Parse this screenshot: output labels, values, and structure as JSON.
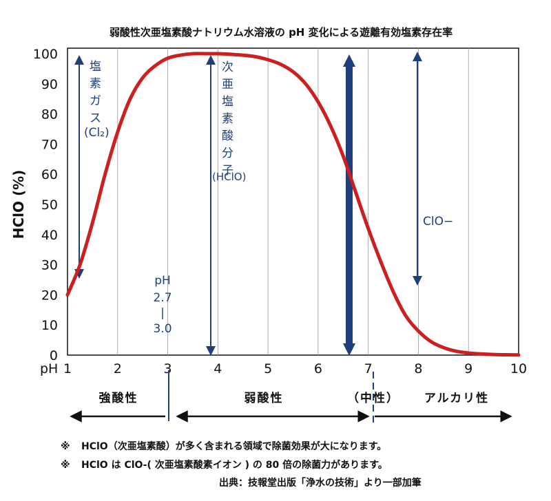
{
  "chart_data": {
    "type": "line",
    "title": "弱酸性次亜塩素酸ナトリウム水溶液の pH 変化による遊離有効塩素存在率",
    "ylabel": "HClO (%)",
    "xlabel": "pH",
    "xlim": [
      1,
      10
    ],
    "ylim": [
      0,
      100
    ],
    "x_ticks": [
      "1",
      "2",
      "3",
      "4",
      "5",
      "6",
      "7",
      "8",
      "9",
      "10"
    ],
    "y_ticks": [
      "0",
      "10",
      "20",
      "30",
      "40",
      "50",
      "60",
      "70",
      "80",
      "90",
      "100"
    ],
    "grid": "vertical",
    "series": [
      {
        "color": "#cc1f1f",
        "x": [
          1.0,
          1.25,
          1.5,
          1.75,
          2.0,
          2.25,
          2.5,
          2.75,
          3.0,
          3.25,
          3.5,
          3.75,
          4.0,
          4.25,
          4.5,
          4.75,
          5.0,
          5.25,
          5.5,
          5.75,
          6.0,
          6.25,
          6.5,
          6.75,
          7.0,
          7.25,
          7.5,
          7.75,
          8.0,
          8.25,
          8.5,
          8.75,
          9.0,
          9.25,
          9.5,
          9.75,
          10.0
        ],
        "y": [
          20,
          30,
          44,
          60,
          74,
          85,
          92,
          96,
          98.5,
          99.5,
          100,
          100,
          100,
          99.8,
          99.5,
          99,
          98,
          96.5,
          94,
          90,
          84,
          76,
          66,
          54,
          42,
          31,
          21,
          13,
          8,
          4.5,
          2.5,
          1.3,
          0.7,
          0.4,
          0.2,
          0.1,
          0.05
        ]
      }
    ],
    "annotations": {
      "cl2": "塩素ガス(Cl₂)",
      "hclo": "次亜塩素酸分子(HClO)",
      "clo": "ClO−",
      "ph_range": [
        "pH",
        "2.7",
        "|",
        "3.0"
      ]
    }
  },
  "regions": {
    "strong_acid": "強酸性",
    "weak_acid": "弱酸性",
    "neutral": "（中性）",
    "alkaline": "アルカリ性"
  },
  "notes": {
    "note1_mark": "※",
    "note1": "HClO（次亜塩素酸）が多く含まれる領域で除菌効果が大になります。",
    "note2_mark": "※",
    "note2": "HClO は ClO-( 次亜塩素酸素イオン ) の 80 倍の除菌力があります。",
    "source": "出典：技報堂出版「浄水の技術」より一部加筆"
  },
  "colors": {
    "curve": "#cc1f1f",
    "annotation_blue": "#1f3e7a",
    "grid": "#9a9a9a"
  }
}
